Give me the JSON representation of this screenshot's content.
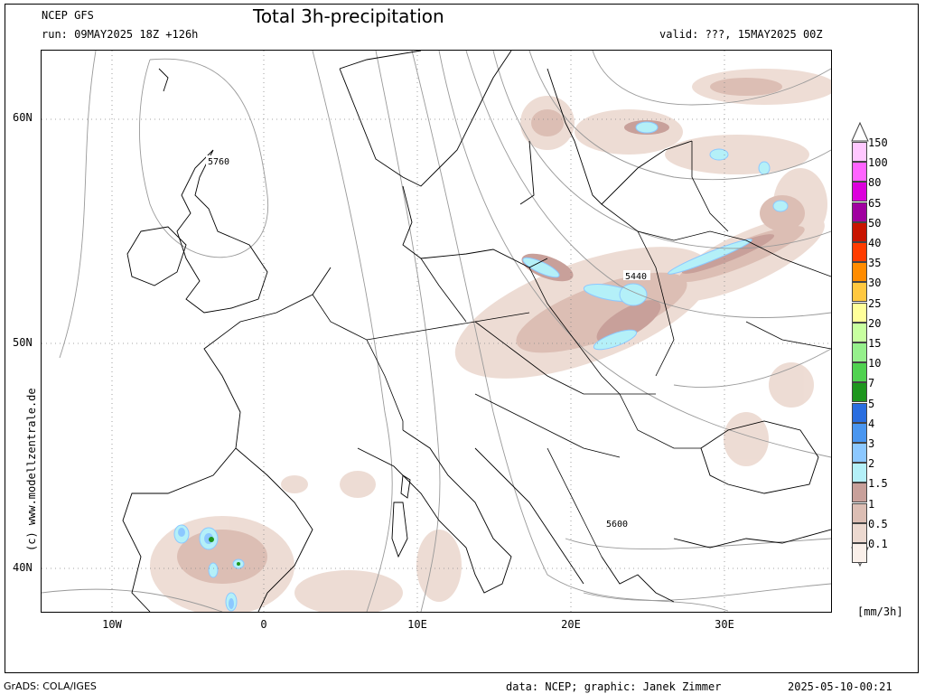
{
  "header": {
    "model": "NCEP GFS",
    "run": "run: 09MAY2025 18Z +126h",
    "title": "Total 3h-precipitation",
    "valid": "valid: ???, 15MAY2025 00Z"
  },
  "footer": {
    "credit": "GrADS: COLA/IGES",
    "data_source": "data: NCEP; graphic: Janek Zimmer",
    "timestamp": "2025-05-10-00:21"
  },
  "watermark": "(c) www.modellzentrale.de",
  "axes": {
    "latitude_labels": [
      "60N",
      "50N",
      "40N"
    ],
    "longitude_labels": [
      "10W",
      "0",
      "10E",
      "20E",
      "30E"
    ]
  },
  "contour_labels": [
    "5760",
    "5440",
    "5600"
  ],
  "legend": {
    "unit": "[mm/3h]",
    "levels": [
      "150",
      "100",
      "80",
      "65",
      "50",
      "40",
      "35",
      "30",
      "25",
      "20",
      "15",
      "10",
      "7",
      "5",
      "4",
      "3",
      "2",
      "1.5",
      "1",
      "0.5",
      "0.1"
    ],
    "colors": [
      "#ffc8ff",
      "#ff64ff",
      "#dc00dc",
      "#a000a0",
      "#c81400",
      "#ff3c00",
      "#ff8c00",
      "#ffc840",
      "#ffff9a",
      "#c8ffa0",
      "#96f08c",
      "#50d250",
      "#1e961e",
      "#2a6ee0",
      "#4a96f0",
      "#8cc8ff",
      "#b4f0f8",
      "#c8a09a",
      "#dcbeb4",
      "#ecd9d0",
      "#faf0ea"
    ]
  },
  "precip_colors": {
    "trace": "#ecd9d0",
    "light": "#dcbeb4",
    "moderate": "#c8a09a",
    "heavy": "#b4f0f8",
    "heavier": "#8cc8ff",
    "peak": "#1e961e"
  }
}
